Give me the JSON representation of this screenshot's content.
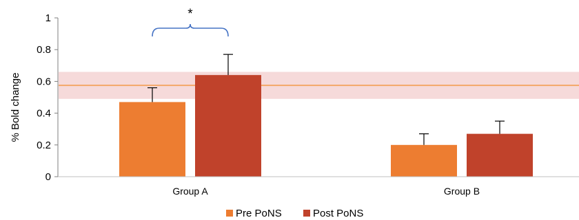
{
  "chart_data": {
    "type": "bar",
    "title": "",
    "xlabel": "",
    "ylabel": "% Bold change",
    "categories": [
      "Group A",
      "Group B"
    ],
    "ylim": [
      0,
      1
    ],
    "yticks": [
      "0",
      "0.2",
      "0.4",
      "0.6",
      "0.8",
      "1"
    ],
    "grid": false,
    "legend_position": "bottom",
    "series": [
      {
        "name": "Pre PoNS",
        "color": "#ED7D31",
        "values": [
          0.47,
          0.2
        ],
        "error_upper": [
          0.09,
          0.07
        ]
      },
      {
        "name": "Post PoNS",
        "color": "#C0422B",
        "values": [
          0.64,
          0.27
        ],
        "error_upper": [
          0.13,
          0.08
        ]
      }
    ],
    "reference_line": {
      "value": 0.575,
      "band": [
        0.49,
        0.66
      ],
      "line_color": "#F4A460",
      "band_color": "#F6DADA"
    },
    "annotations": [
      {
        "text": "*",
        "category": "Group A",
        "type": "significance-bracket",
        "color": "#4472C4"
      }
    ]
  }
}
